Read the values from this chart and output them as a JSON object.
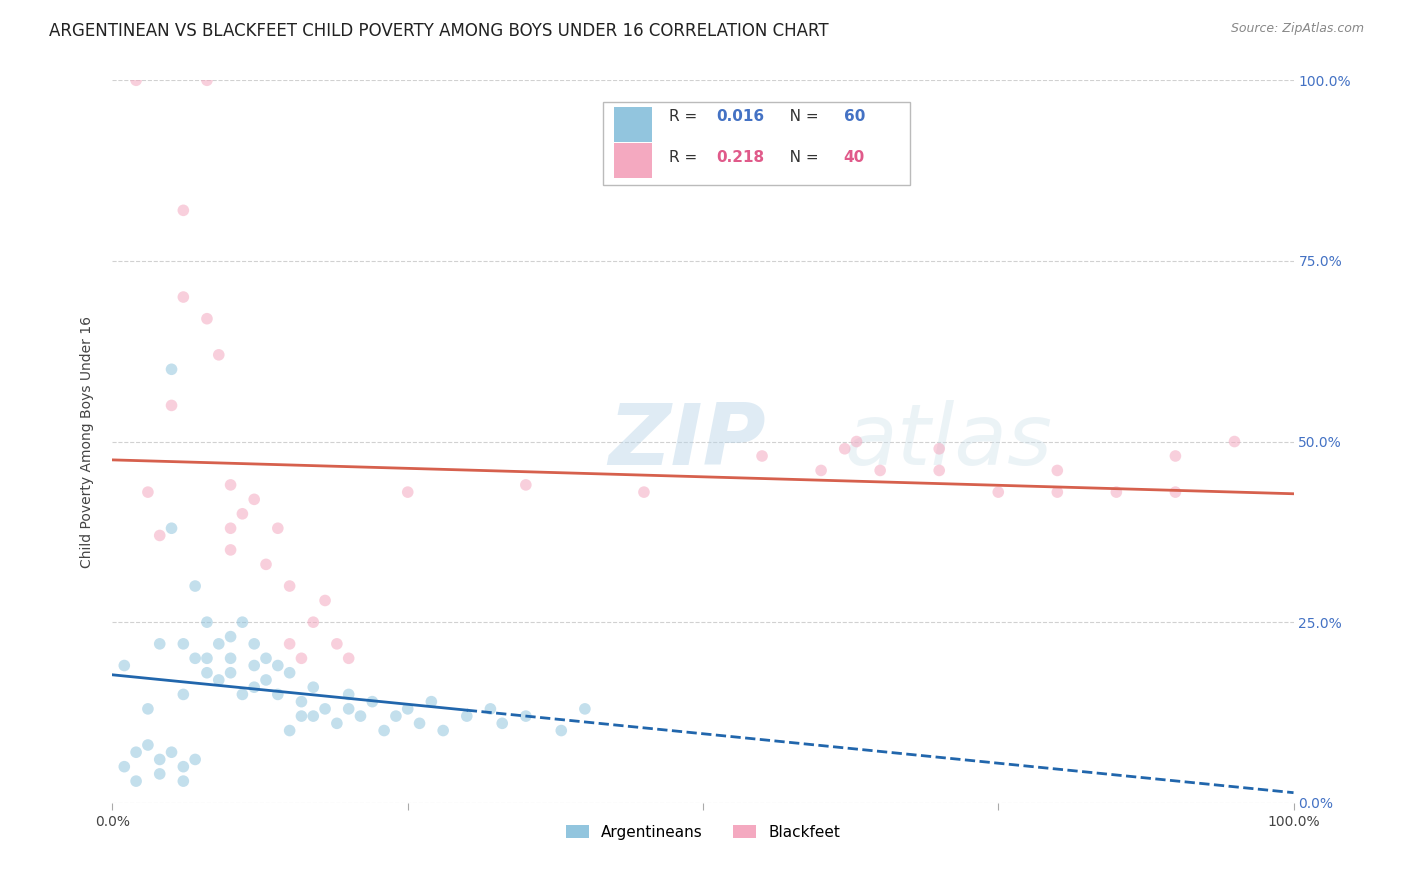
{
  "title": "ARGENTINEAN VS BLACKFEET CHILD POVERTY AMONG BOYS UNDER 16 CORRELATION CHART",
  "source": "Source: ZipAtlas.com",
  "ylabel": "Child Poverty Among Boys Under 16",
  "watermark_zip": "ZIP",
  "watermark_atlas": "atlas",
  "legend_blue_r": "0.016",
  "legend_blue_n": "60",
  "legend_pink_r": "0.218",
  "legend_pink_n": "40",
  "blue_color": "#92c5de",
  "pink_color": "#f4a9c0",
  "trend_blue_color": "#2166ac",
  "trend_pink_color": "#d6604d",
  "blue_points_x": [
    0.01,
    0.03,
    0.04,
    0.05,
    0.06,
    0.06,
    0.07,
    0.07,
    0.08,
    0.08,
    0.08,
    0.09,
    0.09,
    0.1,
    0.1,
    0.1,
    0.11,
    0.11,
    0.12,
    0.12,
    0.12,
    0.13,
    0.13,
    0.14,
    0.14,
    0.15,
    0.15,
    0.16,
    0.16,
    0.17,
    0.17,
    0.18,
    0.19,
    0.2,
    0.2,
    0.21,
    0.22,
    0.23,
    0.24,
    0.25,
    0.26,
    0.27,
    0.28,
    0.3,
    0.32,
    0.33,
    0.35,
    0.38,
    0.4,
    0.01,
    0.02,
    0.02,
    0.03,
    0.04,
    0.04,
    0.05,
    0.06,
    0.06,
    0.07,
    0.05
  ],
  "blue_points_y": [
    0.19,
    0.13,
    0.22,
    0.38,
    0.22,
    0.15,
    0.3,
    0.2,
    0.25,
    0.18,
    0.2,
    0.22,
    0.17,
    0.2,
    0.23,
    0.18,
    0.25,
    0.15,
    0.19,
    0.22,
    0.16,
    0.2,
    0.17,
    0.19,
    0.15,
    0.18,
    0.1,
    0.14,
    0.12,
    0.16,
    0.12,
    0.13,
    0.11,
    0.13,
    0.15,
    0.12,
    0.14,
    0.1,
    0.12,
    0.13,
    0.11,
    0.14,
    0.1,
    0.12,
    0.13,
    0.11,
    0.12,
    0.1,
    0.13,
    0.05,
    0.07,
    0.03,
    0.08,
    0.06,
    0.04,
    0.07,
    0.05,
    0.03,
    0.06,
    0.6
  ],
  "pink_points_x": [
    0.02,
    0.08,
    0.06,
    0.06,
    0.08,
    0.09,
    0.1,
    0.1,
    0.1,
    0.11,
    0.12,
    0.13,
    0.14,
    0.15,
    0.15,
    0.16,
    0.17,
    0.18,
    0.19,
    0.2,
    0.03,
    0.04,
    0.05,
    0.25,
    0.35,
    0.45,
    0.55,
    0.6,
    0.62,
    0.63,
    0.65,
    0.7,
    0.7,
    0.75,
    0.8,
    0.8,
    0.85,
    0.9,
    0.9,
    0.95
  ],
  "pink_points_y": [
    1.0,
    1.0,
    0.82,
    0.7,
    0.67,
    0.62,
    0.44,
    0.38,
    0.35,
    0.4,
    0.42,
    0.33,
    0.38,
    0.3,
    0.22,
    0.2,
    0.25,
    0.28,
    0.22,
    0.2,
    0.43,
    0.37,
    0.55,
    0.43,
    0.44,
    0.43,
    0.48,
    0.46,
    0.49,
    0.5,
    0.46,
    0.46,
    0.49,
    0.43,
    0.43,
    0.46,
    0.43,
    0.43,
    0.48,
    0.5
  ],
  "xlim": [
    0.0,
    1.0
  ],
  "ylim": [
    0.0,
    1.0
  ],
  "grid_color": "#cccccc",
  "background_color": "#ffffff",
  "title_fontsize": 12,
  "axis_label_fontsize": 10,
  "tick_fontsize": 10,
  "marker_size": 70,
  "marker_alpha": 0.55,
  "trend_linewidth": 2.0,
  "blue_trend_start": 0.0,
  "blue_trend_split": 0.3,
  "blue_trend_end": 1.0
}
